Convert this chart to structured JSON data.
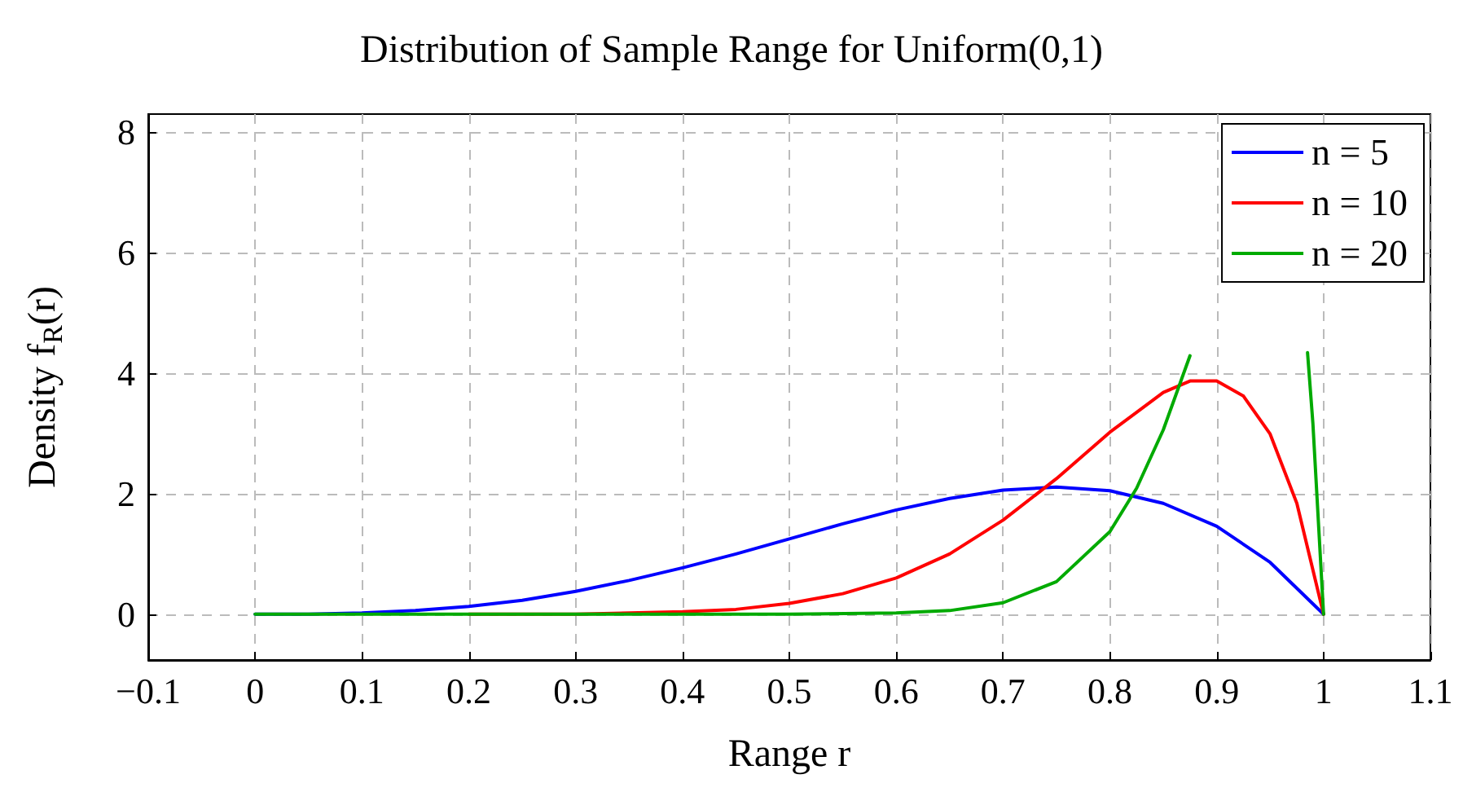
{
  "chart_data": {
    "type": "line",
    "title": "Distribution of Sample Range for Uniform(0,1)",
    "xlabel": "Range r",
    "ylabel": "Density f$_{R}$(r)",
    "series": [
      {
        "name": "n = 5",
        "color": "#0000ff",
        "x": [
          0,
          0.05,
          0.1,
          0.15,
          0.2,
          0.25,
          0.3,
          0.35,
          0.4,
          0.45,
          0.5,
          0.55,
          0.6,
          0.65,
          0.7,
          0.75,
          0.8,
          0.85,
          0.9,
          0.95,
          1
        ],
        "values": [
          0,
          0,
          0.02,
          0.06,
          0.13,
          0.23,
          0.38,
          0.56,
          0.77,
          1.0,
          1.25,
          1.5,
          1.73,
          1.92,
          2.06,
          2.11,
          2.05,
          1.84,
          1.46,
          0.86,
          0
        ]
      },
      {
        "name": "n = 10",
        "color": "#ff0000",
        "x": [
          0.2,
          0.3,
          0.4,
          0.45,
          0.5,
          0.55,
          0.6,
          0.65,
          0.7,
          0.75,
          0.8,
          0.85,
          0.875,
          0.9,
          0.925,
          0.95,
          0.975,
          1
        ],
        "values": [
          0,
          0,
          0.04,
          0.08,
          0.18,
          0.34,
          0.6,
          1.0,
          1.56,
          2.25,
          3.02,
          3.68,
          3.87,
          3.87,
          3.62,
          2.99,
          1.84,
          0
        ]
      },
      {
        "name": "n = 20",
        "color": "#00aa00",
        "x": [
          0,
          0.1,
          0.2,
          0.3,
          0.4,
          0.5,
          0.6,
          0.65,
          0.7,
          0.75,
          0.8,
          0.825,
          0.85,
          0.875,
          0.9,
          0.925,
          0.95,
          0.975,
          0.985,
          0.99,
          1
        ],
        "values": [
          0,
          0,
          0,
          0,
          0,
          0,
          0.02,
          0.06,
          0.19,
          0.54,
          1.37,
          2.09,
          3.06,
          4.29,
          null,
          null,
          null,
          null,
          4.34,
          3.17,
          0
        ]
      }
    ],
    "xlim": [
      -0.1,
      1.1
    ],
    "xticks": [
      {
        "value": -0.1,
        "label": "−0.1"
      },
      0,
      0.1,
      0.2,
      0.3,
      0.4,
      0.5,
      0.6,
      0.7,
      0.8,
      0.9,
      1,
      1.1
    ],
    "ylim": [
      -0.76,
      8.3
    ],
    "yticks": [
      0,
      2,
      4,
      6,
      8
    ],
    "grid": true,
    "legend": "top right",
    "marker": "none",
    "line_style": "solid"
  }
}
